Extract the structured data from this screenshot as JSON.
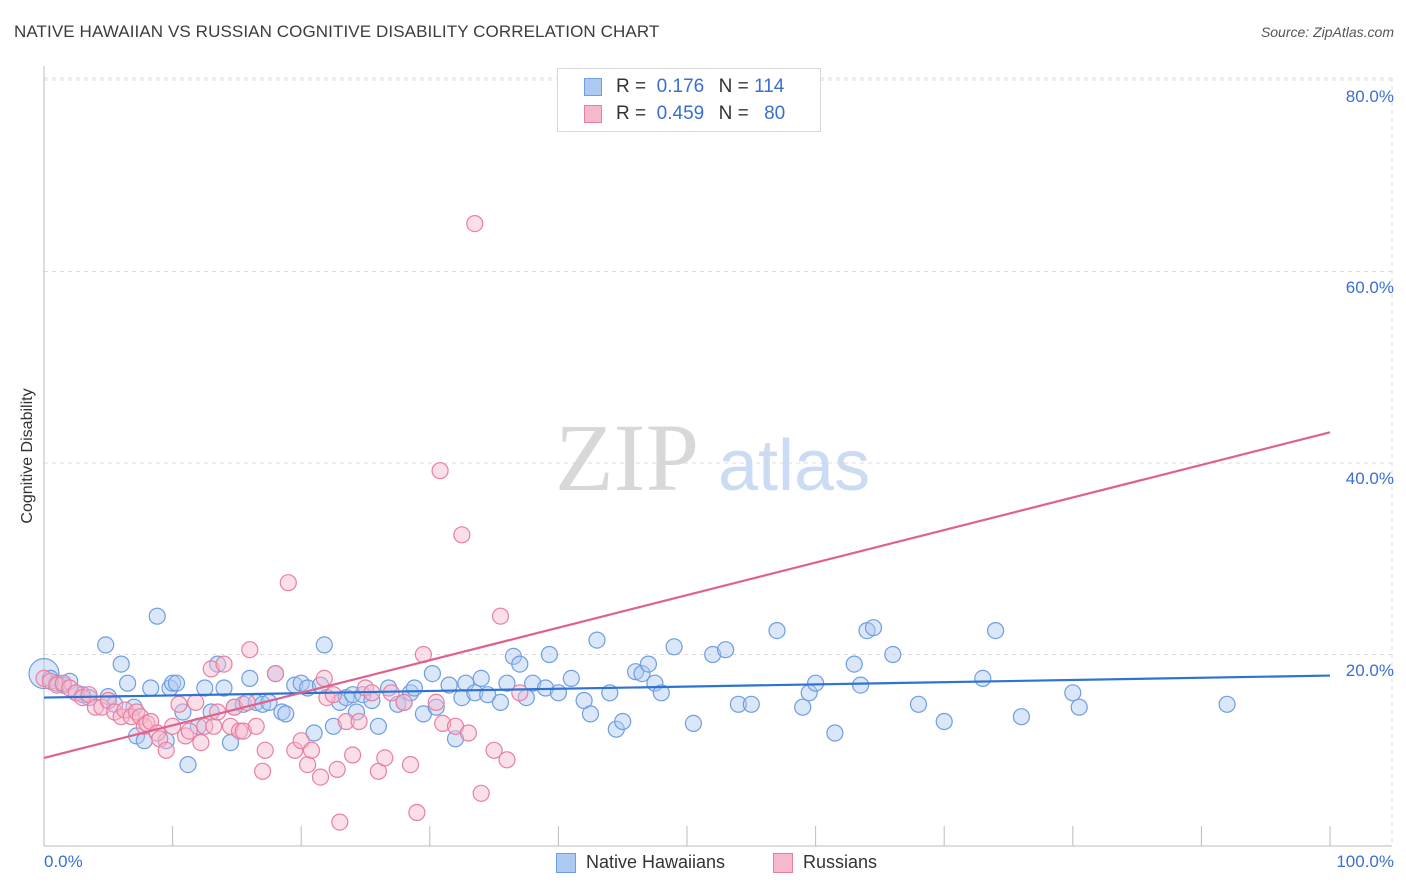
{
  "title": "NATIVE HAWAIIAN VS RUSSIAN COGNITIVE DISABILITY CORRELATION CHART",
  "source": "Source: ZipAtlas.com",
  "watermark": {
    "zip": "ZIP",
    "atlas": "atlas"
  },
  "legend": {
    "r_label": "R =",
    "n_label": "N =",
    "rows": [
      {
        "r": "0.176",
        "n": "114",
        "fill": "#aec9f2",
        "stroke": "#6f9de0"
      },
      {
        "r": "0.459",
        "n": "80",
        "fill": "#f6b9cc",
        "stroke": "#e87fa3"
      }
    ]
  },
  "bottom_legend": [
    "Native Hawaiians",
    "Russians"
  ],
  "x_tick_left": "0.0%",
  "x_tick_right": "100.0%",
  "y_ticks": [
    "80.0%",
    "60.0%",
    "40.0%",
    "20.0%"
  ],
  "chart_data": {
    "type": "scatter",
    "title": "NATIVE HAWAIIAN VS RUSSIAN COGNITIVE DISABILITY CORRELATION CHART",
    "xlabel": "",
    "ylabel": "Cognitive Disability",
    "xlim": [
      0,
      100
    ],
    "ylim": [
      0,
      80
    ],
    "grid": true,
    "legend_position": "top-center",
    "series": [
      {
        "name": "Native Hawaiians",
        "color": "#6f9de0",
        "fill": "#aec9f2",
        "trend": {
          "y_at_x0": 15.5,
          "y_at_x100": 17.8,
          "color": "#2f72d0"
        },
        "points": [
          [
            0,
            18.0
          ],
          [
            0.5,
            17.5
          ],
          [
            1,
            17
          ],
          [
            1.5,
            16.8
          ],
          [
            2,
            17.2
          ],
          [
            2.5,
            16
          ],
          [
            3,
            15.8
          ],
          [
            3.5,
            15.5
          ],
          [
            4.8,
            21
          ],
          [
            5,
            15.6
          ],
          [
            5.5,
            14.8
          ],
          [
            6,
            19
          ],
          [
            6.5,
            17
          ],
          [
            7,
            14.5
          ],
          [
            7.2,
            11.5
          ],
          [
            7.8,
            11
          ],
          [
            8.3,
            16.5
          ],
          [
            8.8,
            24
          ],
          [
            9.5,
            11
          ],
          [
            9.8,
            16.5
          ],
          [
            10,
            17
          ],
          [
            10.3,
            17
          ],
          [
            10.8,
            14
          ],
          [
            11.2,
            8.5
          ],
          [
            12,
            12.5
          ],
          [
            12.5,
            16.5
          ],
          [
            13,
            14
          ],
          [
            13.5,
            19
          ],
          [
            14,
            16.5
          ],
          [
            14.5,
            10.8
          ],
          [
            14.8,
            14.5
          ],
          [
            15.5,
            14.8
          ],
          [
            16,
            17.5
          ],
          [
            16.5,
            15
          ],
          [
            17,
            14.8
          ],
          [
            17.5,
            15
          ],
          [
            18,
            18
          ],
          [
            18.5,
            14
          ],
          [
            18.8,
            13.8
          ],
          [
            19.5,
            16.8
          ],
          [
            20,
            17
          ],
          [
            20.5,
            16.5
          ],
          [
            21,
            11.8
          ],
          [
            21.5,
            16.8
          ],
          [
            21.8,
            21
          ],
          [
            22.5,
            12.5
          ],
          [
            23,
            15
          ],
          [
            23.5,
            15.5
          ],
          [
            24,
            15.8
          ],
          [
            24.3,
            14
          ],
          [
            24.8,
            15.8
          ],
          [
            25.5,
            15.2
          ],
          [
            26,
            12.5
          ],
          [
            26.8,
            16.5
          ],
          [
            27.5,
            14.8
          ],
          [
            28,
            15
          ],
          [
            28.5,
            16
          ],
          [
            28.8,
            16.5
          ],
          [
            29.5,
            13.8
          ],
          [
            30.2,
            18
          ],
          [
            30.5,
            14.5
          ],
          [
            31.5,
            16.8
          ],
          [
            32,
            11.2
          ],
          [
            32.5,
            15.5
          ],
          [
            32.8,
            17
          ],
          [
            33.5,
            16
          ],
          [
            34,
            17.5
          ],
          [
            34.5,
            15.8
          ],
          [
            35.5,
            15
          ],
          [
            36,
            17
          ],
          [
            36.5,
            19.8
          ],
          [
            37,
            19
          ],
          [
            37.5,
            15.5
          ],
          [
            38,
            17
          ],
          [
            39,
            16.5
          ],
          [
            39.3,
            20
          ],
          [
            40,
            16
          ],
          [
            41,
            17.5
          ],
          [
            42,
            15.2
          ],
          [
            42.5,
            13.8
          ],
          [
            43,
            21.5
          ],
          [
            44,
            16
          ],
          [
            44.5,
            12.2
          ],
          [
            45,
            13
          ],
          [
            46,
            18.2
          ],
          [
            46.5,
            18
          ],
          [
            47,
            19
          ],
          [
            47.5,
            17
          ],
          [
            48,
            16
          ],
          [
            49,
            20.8
          ],
          [
            50.5,
            12.8
          ],
          [
            52,
            20
          ],
          [
            53,
            20.5
          ],
          [
            54,
            14.8
          ],
          [
            55,
            14.8
          ],
          [
            57,
            22.5
          ],
          [
            59,
            14.5
          ],
          [
            59.5,
            16
          ],
          [
            60,
            17
          ],
          [
            61.5,
            11.8
          ],
          [
            63,
            19
          ],
          [
            63.5,
            16.8
          ],
          [
            64,
            22.5
          ],
          [
            64.5,
            22.8
          ],
          [
            66,
            20
          ],
          [
            68,
            14.8
          ],
          [
            70,
            13
          ],
          [
            73,
            17.5
          ],
          [
            74,
            22.5
          ],
          [
            76,
            13.5
          ],
          [
            80,
            16
          ],
          [
            80.5,
            14.5
          ],
          [
            92,
            14.8
          ]
        ]
      },
      {
        "name": "Russians",
        "color": "#e87fa3",
        "fill": "#f6b9cc",
        "trend": {
          "y_at_x0": 9.2,
          "y_at_x100": 43.2,
          "color": "#e0608e"
        },
        "points": [
          [
            0,
            17.5
          ],
          [
            0.5,
            17.2
          ],
          [
            1,
            16.8
          ],
          [
            1.5,
            17
          ],
          [
            2,
            16.5
          ],
          [
            2.5,
            16
          ],
          [
            3,
            15.5
          ],
          [
            3.5,
            15.8
          ],
          [
            4,
            14.5
          ],
          [
            4.5,
            14.5
          ],
          [
            5,
            15.2
          ],
          [
            5.5,
            14
          ],
          [
            6,
            13.5
          ],
          [
            6.3,
            14.2
          ],
          [
            6.8,
            13.5
          ],
          [
            7.2,
            14
          ],
          [
            7.5,
            13.5
          ],
          [
            7.8,
            12.5
          ],
          [
            8,
            12.8
          ],
          [
            8.3,
            13
          ],
          [
            8.8,
            11.8
          ],
          [
            9,
            11.2
          ],
          [
            9.5,
            10
          ],
          [
            10,
            12.5
          ],
          [
            10.5,
            14.8
          ],
          [
            11,
            11.5
          ],
          [
            11.3,
            12
          ],
          [
            11.8,
            15
          ],
          [
            12.2,
            10.8
          ],
          [
            12.5,
            12.5
          ],
          [
            13,
            18.5
          ],
          [
            13.2,
            12.5
          ],
          [
            13.5,
            14
          ],
          [
            14,
            19
          ],
          [
            14.5,
            12.5
          ],
          [
            14.8,
            14.5
          ],
          [
            15.2,
            12
          ],
          [
            15.5,
            12
          ],
          [
            15.8,
            15
          ],
          [
            16,
            20.5
          ],
          [
            16.5,
            12.5
          ],
          [
            17,
            7.8
          ],
          [
            17.2,
            10
          ],
          [
            18,
            18
          ],
          [
            19,
            27.5
          ],
          [
            19.5,
            10
          ],
          [
            20,
            11
          ],
          [
            20.5,
            8.5
          ],
          [
            20.8,
            10
          ],
          [
            21.5,
            7.2
          ],
          [
            21.8,
            17.5
          ],
          [
            22,
            15.5
          ],
          [
            22.5,
            15.8
          ],
          [
            22.8,
            8
          ],
          [
            23,
            2.5
          ],
          [
            23.5,
            13
          ],
          [
            24,
            9.5
          ],
          [
            24.5,
            13
          ],
          [
            25,
            16.5
          ],
          [
            25.5,
            16
          ],
          [
            26,
            7.8
          ],
          [
            26.5,
            9.2
          ],
          [
            27,
            16
          ],
          [
            28,
            15
          ],
          [
            28.5,
            8.5
          ],
          [
            29,
            3.5
          ],
          [
            29.5,
            20
          ],
          [
            30.5,
            15
          ],
          [
            30.8,
            39.2
          ],
          [
            31,
            12.8
          ],
          [
            32,
            12.5
          ],
          [
            32.5,
            32.5
          ],
          [
            33,
            11.8
          ],
          [
            33.5,
            65
          ],
          [
            34,
            5.5
          ],
          [
            35,
            10
          ],
          [
            35.5,
            24
          ],
          [
            36,
            9
          ],
          [
            37,
            16
          ]
        ]
      }
    ]
  }
}
